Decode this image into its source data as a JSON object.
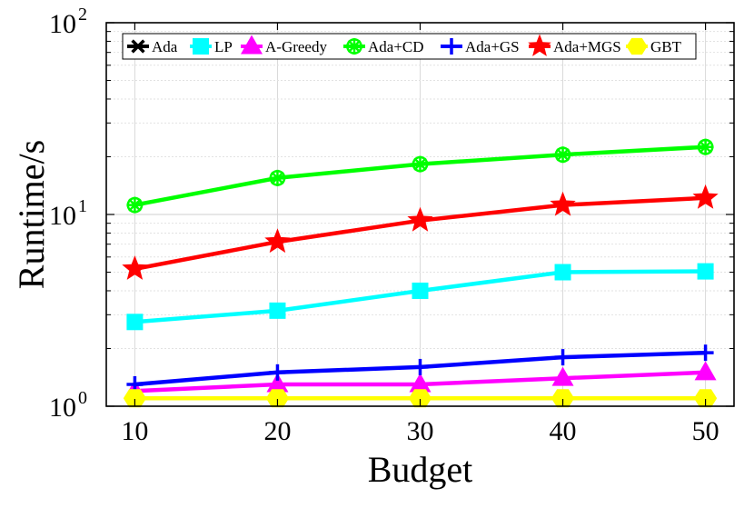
{
  "chart_data": {
    "type": "line",
    "title": "",
    "xlabel": "Budget",
    "ylabel": "Runtime/s",
    "yscale": "log",
    "xlim": [
      8,
      52
    ],
    "ylim": [
      1,
      100
    ],
    "x": [
      10,
      20,
      30,
      40,
      50
    ],
    "xticks": [
      "10",
      "20",
      "30",
      "40",
      "50"
    ],
    "yticks": [
      {
        "value": 1,
        "base": "10",
        "exp": "0"
      },
      {
        "value": 10,
        "base": "10",
        "exp": "1"
      },
      {
        "value": 100,
        "base": "10",
        "exp": "2"
      }
    ],
    "grid": true,
    "legend_position": "top",
    "series": [
      {
        "name": "Ada",
        "color": "#000000",
        "marker": "x-cross",
        "values": [
          1.1,
          1.1,
          1.1,
          1.1,
          1.1
        ]
      },
      {
        "name": "LP",
        "color": "#00ffff",
        "marker": "square",
        "values": [
          2.75,
          3.15,
          4.0,
          5.0,
          5.05
        ]
      },
      {
        "name": "A-Greedy",
        "color": "#ff00ff",
        "marker": "triangle",
        "values": [
          1.2,
          1.3,
          1.3,
          1.4,
          1.5
        ]
      },
      {
        "name": "Ada+CD",
        "color": "#00ff00",
        "marker": "asterisk-circle",
        "values": [
          11.2,
          15.5,
          18.3,
          20.5,
          22.5
        ]
      },
      {
        "name": "Ada+GS",
        "color": "#0000ff",
        "marker": "plus",
        "values": [
          1.3,
          1.5,
          1.6,
          1.8,
          1.9
        ]
      },
      {
        "name": "Ada+MGS",
        "color": "#ff0000",
        "marker": "star",
        "values": [
          5.2,
          7.2,
          9.3,
          11.2,
          12.2
        ]
      },
      {
        "name": "GBT",
        "color": "#ffff00",
        "marker": "hexagon",
        "values": [
          1.1,
          1.1,
          1.1,
          1.1,
          1.1
        ]
      }
    ]
  }
}
